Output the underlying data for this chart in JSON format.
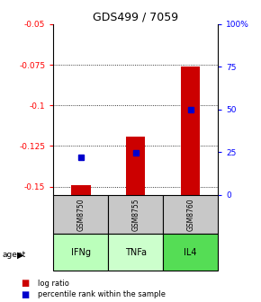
{
  "title": "GDS499 / 7059",
  "samples": [
    "GSM8750",
    "GSM8755",
    "GSM8760"
  ],
  "agents": [
    "IFNg",
    "TNFa",
    "IL4"
  ],
  "log_ratios": [
    -0.149,
    -0.119,
    -0.076
  ],
  "percentile_ranks": [
    0.22,
    0.245,
    0.5
  ],
  "ylim_left": [
    -0.155,
    -0.05
  ],
  "ylim_right": [
    0,
    1.0
  ],
  "yticks_left": [
    -0.15,
    -0.125,
    -0.1,
    -0.075,
    -0.05
  ],
  "ytick_labels_left": [
    "-0.15",
    "-0.125",
    "-0.1",
    "-0.075",
    "-0.05"
  ],
  "yticks_right": [
    0,
    0.25,
    0.5,
    0.75,
    1.0
  ],
  "ytick_labels_right": [
    "0",
    "25",
    "50",
    "75",
    "100%"
  ],
  "bar_color": "#cc0000",
  "dot_color": "#0000cc",
  "sample_bg": "#c8c8c8",
  "agent_colors": [
    "#bbffbb",
    "#ccffcc",
    "#55dd55"
  ],
  "legend_bar_label": "log ratio",
  "legend_dot_label": "percentile rank within the sample",
  "bar_width": 0.35
}
